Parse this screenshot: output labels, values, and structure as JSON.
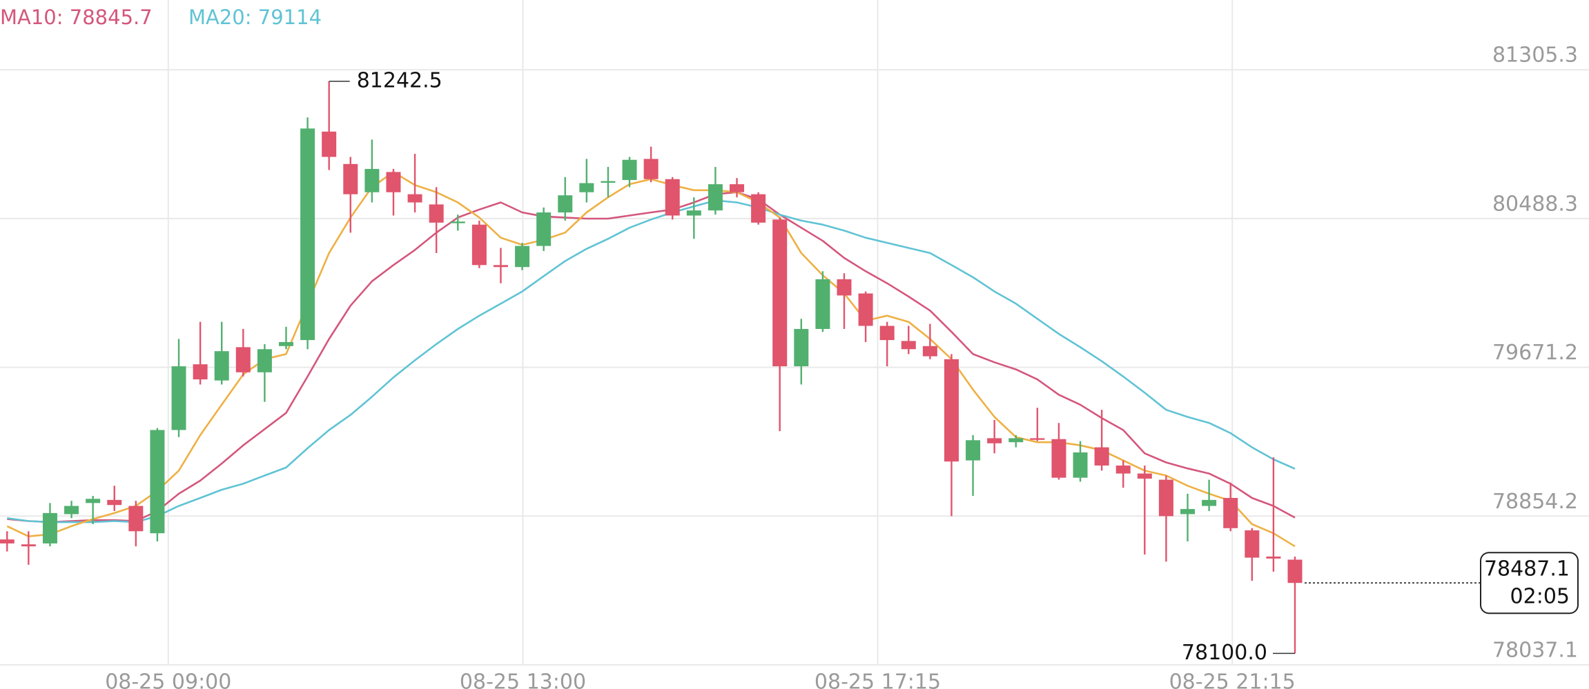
{
  "chart_data": {
    "type": "candlestick",
    "up_color": "#52b06f",
    "down_color": "#e0546c",
    "ylim": [
      78037.1,
      81688.8
    ],
    "yticks": [
      81305.3,
      80488.3,
      79671.2,
      78854.2,
      78037.1
    ],
    "xlim": [
      -0.33,
      73.7
    ],
    "xticks": [
      {
        "value": 7.51,
        "label": "08-25 09:00"
      },
      {
        "value": 24.03,
        "label": "08-25 13:00"
      },
      {
        "value": 40.56,
        "label": "08-25 17:15"
      },
      {
        "value": 57.08,
        "label": "08-25 21:15"
      }
    ],
    "grid": true,
    "open": [
      78726,
      78699,
      78704,
      78865,
      78926,
      78943,
      78910,
      78760,
      79327,
      79688,
      79599,
      79782,
      79644,
      79788,
      79821,
      80966,
      80788,
      80633,
      80744,
      80622,
      80566,
      80466,
      80455,
      80233,
      80222,
      80338,
      80522,
      80633,
      80688,
      80700,
      80816,
      80705,
      80505,
      80533,
      80677,
      80622,
      80483,
      79677,
      79882,
      80155,
      80077,
      79899,
      79816,
      79788,
      79716,
      79160,
      79282,
      79260,
      79282,
      79277,
      79065,
      79232,
      79132,
      79088,
      79054,
      78865,
      78910,
      78954,
      78776,
      78632,
      78615
    ],
    "high": [
      78771,
      78771,
      78926,
      78938,
      78965,
      79021,
      78938,
      79338,
      79827,
      79921,
      79921,
      79882,
      79799,
      79894,
      81044,
      81242.5,
      80827,
      80922,
      80761,
      80844,
      80661,
      80510,
      80477,
      80327,
      80355,
      80549,
      80716,
      80816,
      80772,
      80827,
      80883,
      80716,
      80605,
      80772,
      80711,
      80633,
      80494,
      79938,
      80199,
      80188,
      80088,
      79921,
      79899,
      79910,
      79744,
      79299,
      79382,
      79299,
      79449,
      79366,
      79266,
      79438,
      79160,
      79132,
      79077,
      78977,
      79054,
      79038,
      78788,
      79177,
      78632
    ],
    "low": [
      78660,
      78587,
      78688,
      78843,
      78810,
      78882,
      78688,
      78715,
      79288,
      79577,
      79577,
      79621,
      79482,
      79771,
      79771,
      80755,
      80411,
      80577,
      80505,
      80522,
      80299,
      80422,
      80216,
      80133,
      80205,
      80310,
      80477,
      80577,
      80605,
      80661,
      80688,
      80483,
      80377,
      80510,
      80605,
      80455,
      79321,
      79577,
      79866,
      79882,
      79810,
      79677,
      79744,
      79716,
      78854,
      78965,
      79199,
      79232,
      79266,
      79054,
      79043,
      79104,
      79010,
      78643,
      78604,
      78715,
      78882,
      78771,
      78499,
      78549,
      78100.0
    ],
    "close": [
      78704,
      78688,
      78871,
      78910,
      78949,
      78915,
      78771,
      79327,
      79677,
      79605,
      79760,
      79644,
      79771,
      79810,
      80983,
      80827,
      80622,
      80761,
      80633,
      80577,
      80466,
      80472,
      80233,
      80222,
      80338,
      80522,
      80616,
      80683,
      80694,
      80811,
      80705,
      80505,
      80533,
      80677,
      80633,
      80466,
      79677,
      79882,
      80155,
      80066,
      79899,
      79821,
      79771,
      79732,
      79154,
      79271,
      79254,
      79282,
      79277,
      79065,
      79204,
      79132,
      79088,
      79060,
      78854,
      78893,
      78943,
      78788,
      78626,
      78621,
      78487.1
    ],
    "max_label": "81242.5",
    "min_label": "78100.0",
    "countdown": "02:05",
    "series": [
      {
        "name": "MA10",
        "color": "#d4567c",
        "values": [
          78838,
          78827,
          78821,
          78827,
          78832,
          78832,
          78827,
          78882,
          78977,
          79049,
          79143,
          79243,
          79332,
          79421,
          79621,
          79827,
          80010,
          80144,
          80233,
          80316,
          80411,
          80494,
          80538,
          80577,
          80522,
          80500,
          80494,
          80488,
          80488,
          80505,
          80522,
          80538,
          80577,
          80622,
          80633,
          80594,
          80510,
          80438,
          80366,
          80272,
          80199,
          80133,
          80060,
          79983,
          79866,
          79744,
          79699,
          79660,
          79605,
          79521,
          79466,
          79393,
          79327,
          79199,
          79149,
          79116,
          79088,
          79032,
          78954,
          78910,
          78845.7
        ]
      },
      {
        "name": "MA20",
        "color": "#5fc3d4",
        "values": [
          78843,
          78827,
          78821,
          78821,
          78821,
          78827,
          78821,
          78854,
          78910,
          78954,
          78999,
          79032,
          79077,
          79121,
          79227,
          79327,
          79410,
          79510,
          79616,
          79710,
          79799,
          79882,
          79955,
          80021,
          80088,
          80172,
          80255,
          80322,
          80377,
          80438,
          80483,
          80522,
          80555,
          80588,
          80577,
          80549,
          80510,
          80477,
          80455,
          80422,
          80383,
          80355,
          80327,
          80299,
          80233,
          80166,
          80088,
          80021,
          79938,
          79855,
          79782,
          79705,
          79621,
          79532,
          79438,
          79399,
          79366,
          79310,
          79232,
          79166,
          79114.0
        ]
      },
      {
        "color": "#eeb044",
        "values": [
          78799,
          78743,
          78754,
          78799,
          78838,
          78871,
          78910,
          78993,
          79104,
          79299,
          79466,
          79632,
          79716,
          79744,
          80021,
          80299,
          80494,
          80661,
          80744,
          80672,
          80633,
          80577,
          80494,
          80383,
          80344,
          80372,
          80411,
          80522,
          80605,
          80677,
          80705,
          80672,
          80644,
          80644,
          80633,
          80577,
          80494,
          80299,
          80177,
          80077,
          79927,
          79955,
          79921,
          79827,
          79716,
          79549,
          79399,
          79288,
          79260,
          79260,
          79243,
          79216,
          79160,
          79104,
          79077,
          79021,
          78977,
          78938,
          78810,
          78760,
          78688
        ]
      }
    ]
  }
}
